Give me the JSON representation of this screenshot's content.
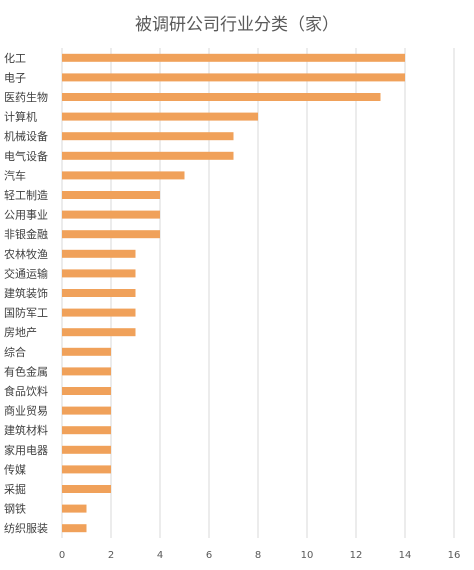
{
  "chart_data": {
    "type": "bar",
    "orientation": "horizontal",
    "title": "被调研公司行业分类（家）",
    "categories": [
      "化工",
      "电子",
      "医药生物",
      "计算机",
      "机械设备",
      "电气设备",
      "汽车",
      "轻工制造",
      "公用事业",
      "非银金融",
      "农林牧渔",
      "交通运输",
      "建筑装饰",
      "国防军工",
      "房地产",
      "综合",
      "有色金属",
      "食品饮料",
      "商业贸易",
      "建筑材料",
      "家用电器",
      "传媒",
      "采掘",
      "钢铁",
      "纺织服装"
    ],
    "values": [
      14,
      14,
      13,
      8,
      7,
      7,
      5,
      4,
      4,
      4,
      3,
      3,
      3,
      3,
      3,
      2,
      2,
      2,
      2,
      2,
      2,
      2,
      2,
      1,
      1
    ],
    "xlim": [
      0,
      16
    ],
    "xticks": [
      0,
      2,
      4,
      6,
      8,
      10,
      12,
      14,
      16
    ],
    "grid": true,
    "legend": "none",
    "bar_color": "#f0a15a",
    "grid_color": "#d9d9d9"
  }
}
